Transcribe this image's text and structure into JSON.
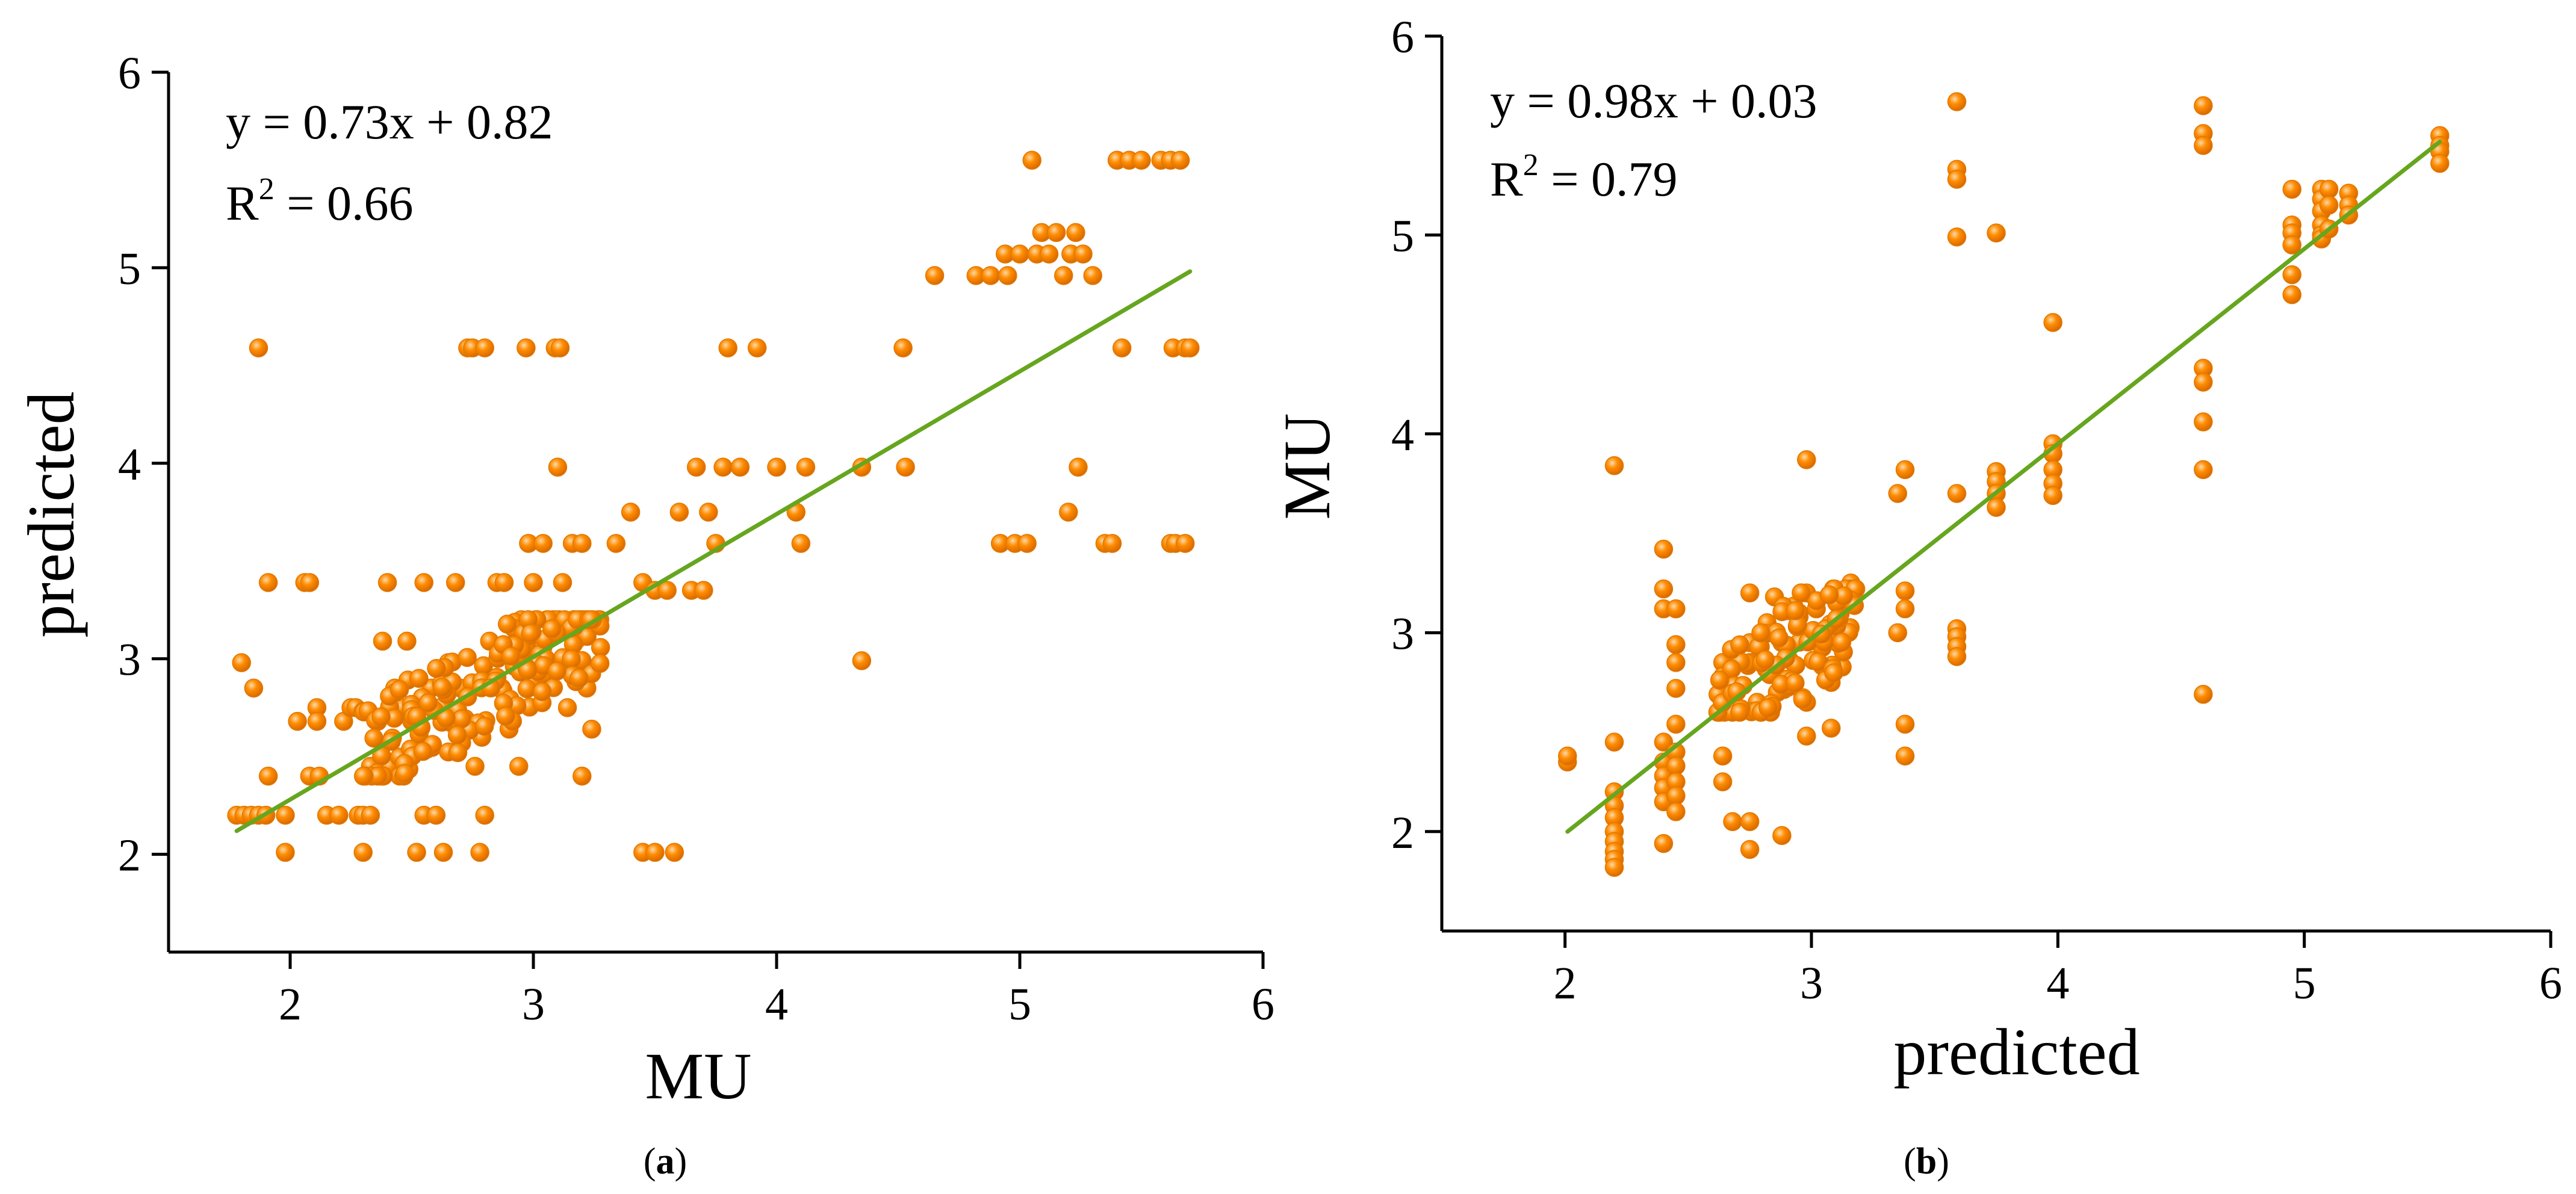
{
  "style": {
    "point_color": "#FF8C00",
    "point_highlight": "#FFD9A8",
    "fit_line_color": "#66A61E",
    "axis_color": "#000000"
  },
  "chart_data": [
    {
      "type": "scatter",
      "panel_label": "(a)",
      "panel_label_open": "(",
      "panel_label_letter": "a",
      "panel_label_close": ")",
      "xlabel": "MU",
      "ylabel": "predicted",
      "xlim": [
        1.5,
        6
      ],
      "ylim": [
        1.5,
        6
      ],
      "xticks": [
        2,
        3,
        4,
        5,
        6
      ],
      "yticks": [
        2,
        3,
        4,
        5,
        6
      ],
      "equation": "y = 0.73x + 0.82",
      "r2_prefix": "R",
      "r2_sup": "2",
      "r2_value": " = 0.66",
      "fit": {
        "slope": 0.73,
        "intercept": 0.82,
        "x_range": [
          1.78,
          5.7
        ]
      },
      "points": [
        [
          1.78,
          2.2
        ],
        [
          1.81,
          2.2
        ],
        [
          1.84,
          2.2
        ],
        [
          1.87,
          2.2
        ],
        [
          1.9,
          2.2
        ],
        [
          1.8,
          2.98
        ],
        [
          1.85,
          2.85
        ],
        [
          1.87,
          4.59
        ],
        [
          1.91,
          3.39
        ],
        [
          1.91,
          2.4
        ],
        [
          1.98,
          2.2
        ],
        [
          1.98,
          2.01
        ],
        [
          2.03,
          2.68
        ],
        [
          2.06,
          3.39
        ],
        [
          2.08,
          3.39
        ],
        [
          2.08,
          2.4
        ],
        [
          2.11,
          2.75
        ],
        [
          2.11,
          2.68
        ],
        [
          2.12,
          2.4
        ],
        [
          2.15,
          2.2
        ],
        [
          2.2,
          2.2
        ],
        [
          2.22,
          2.68
        ],
        [
          2.25,
          2.75
        ],
        [
          2.27,
          2.75
        ],
        [
          2.28,
          2.2
        ],
        [
          2.3,
          2.2
        ],
        [
          2.3,
          2.01
        ],
        [
          2.33,
          2.45
        ],
        [
          2.33,
          2.2
        ],
        [
          2.36,
          2.68
        ],
        [
          2.38,
          3.09
        ],
        [
          2.4,
          3.39
        ],
        [
          2.41,
          2.45
        ],
        [
          2.43,
          2.85
        ],
        [
          2.46,
          2.75
        ],
        [
          2.48,
          3.09
        ],
        [
          2.5,
          2.68
        ],
        [
          2.52,
          2.01
        ],
        [
          2.55,
          3.39
        ],
        [
          2.55,
          2.2
        ],
        [
          2.58,
          2.85
        ],
        [
          2.6,
          2.2
        ],
        [
          2.63,
          2.01
        ],
        [
          2.65,
          2.98
        ],
        [
          2.68,
          3.39
        ],
        [
          2.7,
          2.85
        ],
        [
          2.73,
          4.59
        ],
        [
          2.75,
          4.59
        ],
        [
          2.76,
          2.45
        ],
        [
          2.78,
          2.01
        ],
        [
          2.8,
          4.59
        ],
        [
          2.8,
          2.2
        ],
        [
          2.82,
          3.09
        ],
        [
          2.85,
          3.39
        ],
        [
          2.87,
          2.85
        ],
        [
          2.88,
          3.39
        ],
        [
          2.9,
          2.64
        ],
        [
          2.91,
          3.17
        ],
        [
          2.93,
          3.09
        ],
        [
          2.94,
          2.45
        ],
        [
          2.97,
          4.59
        ],
        [
          2.98,
          3.59
        ],
        [
          2.99,
          2.98
        ],
        [
          3.0,
          3.39
        ],
        [
          3.02,
          2.85
        ],
        [
          3.04,
          3.59
        ],
        [
          3.06,
          3.1
        ],
        [
          3.07,
          2.98
        ],
        [
          3.09,
          4.59
        ],
        [
          3.1,
          3.98
        ],
        [
          3.11,
          4.59
        ],
        [
          3.12,
          3.39
        ],
        [
          3.14,
          2.75
        ],
        [
          3.16,
          3.59
        ],
        [
          3.18,
          3.1
        ],
        [
          3.2,
          2.4
        ],
        [
          3.2,
          3.59
        ],
        [
          3.22,
          2.85
        ],
        [
          3.24,
          2.64
        ],
        [
          3.25,
          3.17
        ],
        [
          3.34,
          3.59
        ],
        [
          3.4,
          3.75
        ],
        [
          3.45,
          3.39
        ],
        [
          3.45,
          2.01
        ],
        [
          3.5,
          3.35
        ],
        [
          3.5,
          2.01
        ],
        [
          3.55,
          3.35
        ],
        [
          3.58,
          2.01
        ],
        [
          3.6,
          3.75
        ],
        [
          3.65,
          3.35
        ],
        [
          3.67,
          3.98
        ],
        [
          3.7,
          3.35
        ],
        [
          3.72,
          3.75
        ],
        [
          3.75,
          3.59
        ],
        [
          3.78,
          3.98
        ],
        [
          3.8,
          4.59
        ],
        [
          3.85,
          3.98
        ],
        [
          3.92,
          4.59
        ],
        [
          4.0,
          3.98
        ],
        [
          4.08,
          3.75
        ],
        [
          4.1,
          3.59
        ],
        [
          4.12,
          3.98
        ],
        [
          4.35,
          3.98
        ],
        [
          4.35,
          2.99
        ],
        [
          4.52,
          4.59
        ],
        [
          4.53,
          3.98
        ],
        [
          4.65,
          4.96
        ],
        [
          4.82,
          4.96
        ],
        [
          4.88,
          4.96
        ],
        [
          4.92,
          3.59
        ],
        [
          4.94,
          5.07
        ],
        [
          4.95,
          4.96
        ],
        [
          4.98,
          3.59
        ],
        [
          5.0,
          5.07
        ],
        [
          5.03,
          3.59
        ],
        [
          5.05,
          5.55
        ],
        [
          5.07,
          5.07
        ],
        [
          5.09,
          5.18
        ],
        [
          5.12,
          5.07
        ],
        [
          5.15,
          5.18
        ],
        [
          5.18,
          4.96
        ],
        [
          5.2,
          3.75
        ],
        [
          5.21,
          5.07
        ],
        [
          5.23,
          5.18
        ],
        [
          5.24,
          3.98
        ],
        [
          5.26,
          5.07
        ],
        [
          5.3,
          4.96
        ],
        [
          5.35,
          3.59
        ],
        [
          5.38,
          3.59
        ],
        [
          5.4,
          5.55
        ],
        [
          5.42,
          4.59
        ],
        [
          5.45,
          5.55
        ],
        [
          5.5,
          5.55
        ],
        [
          5.58,
          5.55
        ],
        [
          5.62,
          3.59
        ],
        [
          5.62,
          5.55
        ],
        [
          5.63,
          4.59
        ],
        [
          5.64,
          3.59
        ],
        [
          5.66,
          5.55
        ],
        [
          5.68,
          4.59
        ],
        [
          5.7,
          4.59
        ],
        [
          5.68,
          3.59
        ]
      ],
      "cluster": {
        "x_range": [
          2.3,
          3.28
        ],
        "y_range": [
          2.4,
          3.2
        ],
        "n": 180,
        "seed": 7
      }
    },
    {
      "type": "scatter",
      "panel_label": "(b)",
      "panel_label_open": "(",
      "panel_label_letter": "b",
      "panel_label_close": ")",
      "xlabel": "predicted",
      "ylabel": "MU",
      "xlim": [
        1.5,
        6
      ],
      "ylim": [
        1.5,
        6
      ],
      "xticks": [
        2,
        3,
        4,
        5,
        6
      ],
      "yticks": [
        2,
        3,
        4,
        5,
        6
      ],
      "equation": "y = 0.98x + 0.03",
      "r2_prefix": "R",
      "r2_sup": "2",
      "r2_value": " = 0.79",
      "fit": {
        "slope": 0.98,
        "intercept": 0.03,
        "x_range": [
          2.01,
          5.55
        ]
      },
      "points": [
        [
          2.01,
          2.35
        ],
        [
          2.01,
          2.38
        ],
        [
          2.2,
          3.84
        ],
        [
          2.2,
          2.45
        ],
        [
          2.2,
          2.2
        ],
        [
          2.2,
          2.13
        ],
        [
          2.2,
          2.07
        ],
        [
          2.2,
          2.0
        ],
        [
          2.2,
          1.95
        ],
        [
          2.2,
          1.9
        ],
        [
          2.2,
          1.86
        ],
        [
          2.2,
          1.82
        ],
        [
          2.4,
          3.42
        ],
        [
          2.4,
          3.22
        ],
        [
          2.4,
          3.12
        ],
        [
          2.4,
          2.45
        ],
        [
          2.4,
          2.35
        ],
        [
          2.4,
          2.28
        ],
        [
          2.4,
          2.22
        ],
        [
          2.4,
          2.15
        ],
        [
          2.4,
          1.94
        ],
        [
          2.45,
          3.12
        ],
        [
          2.45,
          2.94
        ],
        [
          2.45,
          2.85
        ],
        [
          2.45,
          2.72
        ],
        [
          2.45,
          2.54
        ],
        [
          2.45,
          2.4
        ],
        [
          2.45,
          2.33
        ],
        [
          2.45,
          2.25
        ],
        [
          2.45,
          2.18
        ],
        [
          2.45,
          2.1
        ],
        [
          2.64,
          2.85
        ],
        [
          2.64,
          2.78
        ],
        [
          2.64,
          2.38
        ],
        [
          2.64,
          2.25
        ],
        [
          2.68,
          2.61
        ],
        [
          2.68,
          2.05
        ],
        [
          2.75,
          3.2
        ],
        [
          2.75,
          2.95
        ],
        [
          2.75,
          2.85
        ],
        [
          2.75,
          2.05
        ],
        [
          2.75,
          1.91
        ],
        [
          2.78,
          2.65
        ],
        [
          2.82,
          3.05
        ],
        [
          2.85,
          3.18
        ],
        [
          2.88,
          2.95
        ],
        [
          2.88,
          1.98
        ],
        [
          2.95,
          3.08
        ],
        [
          2.98,
          3.87
        ],
        [
          2.98,
          3.2
        ],
        [
          2.98,
          2.65
        ],
        [
          2.98,
          2.48
        ],
        [
          3.02,
          3.12
        ],
        [
          3.05,
          2.95
        ],
        [
          3.08,
          2.81
        ],
        [
          3.08,
          2.75
        ],
        [
          3.08,
          2.52
        ],
        [
          3.12,
          3.18
        ],
        [
          3.16,
          3.25
        ],
        [
          3.35,
          3.7
        ],
        [
          3.35,
          3.0
        ],
        [
          3.38,
          3.82
        ],
        [
          3.38,
          3.21
        ],
        [
          3.38,
          3.12
        ],
        [
          3.38,
          2.54
        ],
        [
          3.38,
          2.38
        ],
        [
          3.59,
          5.67
        ],
        [
          3.59,
          5.33
        ],
        [
          3.59,
          5.28
        ],
        [
          3.59,
          4.99
        ],
        [
          3.59,
          3.7
        ],
        [
          3.59,
          3.02
        ],
        [
          3.59,
          2.98
        ],
        [
          3.59,
          2.93
        ],
        [
          3.59,
          2.88
        ],
        [
          3.75,
          5.01
        ],
        [
          3.75,
          3.81
        ],
        [
          3.75,
          3.76
        ],
        [
          3.75,
          3.7
        ],
        [
          3.75,
          3.63
        ],
        [
          3.98,
          4.56
        ],
        [
          3.98,
          3.95
        ],
        [
          3.98,
          3.9
        ],
        [
          3.98,
          3.82
        ],
        [
          3.98,
          3.75
        ],
        [
          3.98,
          3.69
        ],
        [
          4.59,
          5.65
        ],
        [
          4.59,
          5.51
        ],
        [
          4.59,
          5.45
        ],
        [
          4.59,
          4.33
        ],
        [
          4.59,
          4.26
        ],
        [
          4.59,
          4.06
        ],
        [
          4.59,
          3.82
        ],
        [
          4.59,
          2.69
        ],
        [
          4.95,
          5.23
        ],
        [
          4.95,
          5.05
        ],
        [
          4.95,
          5.01
        ],
        [
          4.95,
          4.95
        ],
        [
          4.95,
          4.8
        ],
        [
          4.95,
          4.7
        ],
        [
          5.07,
          5.23
        ],
        [
          5.07,
          5.18
        ],
        [
          5.07,
          5.12
        ],
        [
          5.07,
          5.05
        ],
        [
          5.07,
          5.0
        ],
        [
          5.07,
          4.98
        ],
        [
          5.1,
          5.23
        ],
        [
          5.1,
          5.15
        ],
        [
          5.1,
          5.03
        ],
        [
          5.18,
          5.21
        ],
        [
          5.18,
          5.15
        ],
        [
          5.18,
          5.1
        ],
        [
          5.55,
          5.5
        ],
        [
          5.55,
          5.45
        ],
        [
          5.55,
          5.42
        ],
        [
          5.55,
          5.36
        ]
      ],
      "cluster": {
        "x_range": [
          2.62,
          3.18
        ],
        "y_range": [
          2.6,
          3.22
        ],
        "n": 110,
        "seed": 11
      }
    }
  ]
}
